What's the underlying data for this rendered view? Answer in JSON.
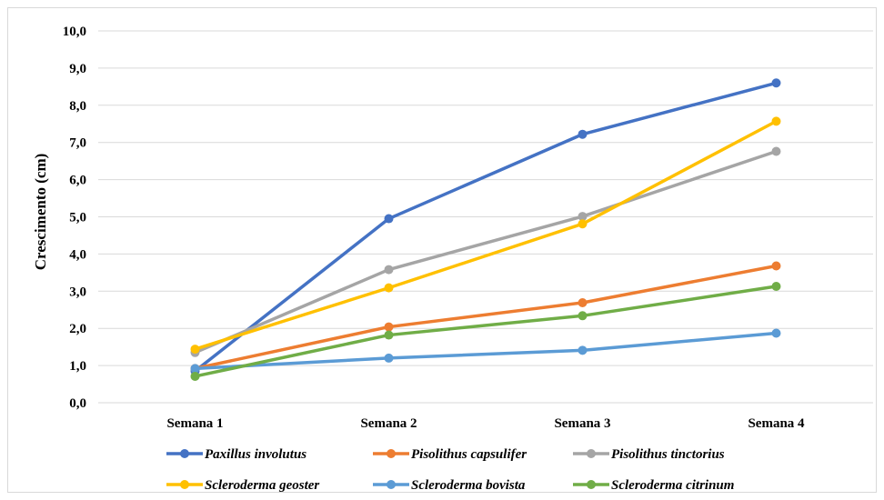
{
  "chart_data": {
    "type": "line",
    "title": "",
    "xlabel": "",
    "ylabel": "Crescimento (cm)",
    "ylim": [
      0,
      10
    ],
    "y_ticks": [
      "0,0",
      "1,0",
      "2,0",
      "3,0",
      "4,0",
      "5,0",
      "6,0",
      "7,0",
      "8,0",
      "9,0",
      "10,0"
    ],
    "categories": [
      "Semana 1",
      "Semana 2",
      "Semana 3",
      "Semana 4"
    ],
    "grid": true,
    "legend_position": "bottom",
    "series": [
      {
        "name": "Paxillus involutus",
        "color": "#4472C4",
        "values": [
          0.85,
          4.95,
          7.22,
          8.6
        ]
      },
      {
        "name": "Pisolithus capsulifer",
        "color": "#ED7D31",
        "values": [
          0.92,
          2.04,
          2.69,
          3.68
        ]
      },
      {
        "name": "Pisolithus tinctorius",
        "color": "#A5A5A5",
        "values": [
          1.35,
          3.58,
          5.01,
          6.76
        ]
      },
      {
        "name": "Scleroderma geoster",
        "color": "#FFC000",
        "values": [
          1.44,
          3.09,
          4.81,
          7.57
        ]
      },
      {
        "name": "Scleroderma bovista",
        "color": "#5B9BD5",
        "values": [
          0.92,
          1.2,
          1.41,
          1.87
        ]
      },
      {
        "name": "Scleroderma citrinum",
        "color": "#70AD47",
        "values": [
          0.71,
          1.82,
          2.34,
          3.13
        ]
      }
    ]
  }
}
